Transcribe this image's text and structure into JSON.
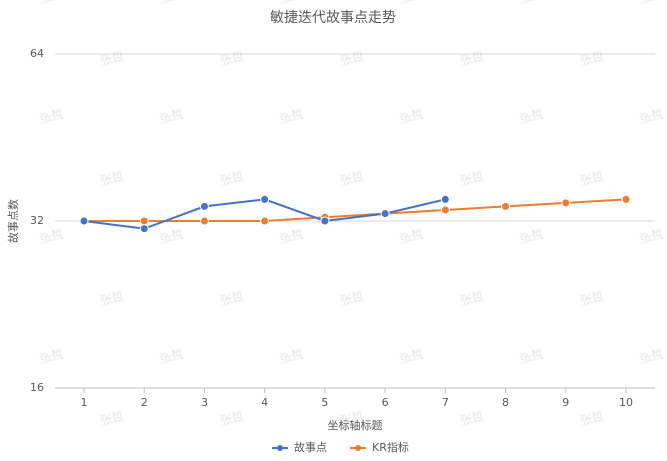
{
  "chart_data": {
    "type": "line",
    "title": "敏捷迭代故事点走势",
    "xlabel": "坐标轴标题",
    "ylabel": "故事点数",
    "categories": [
      "1",
      "2",
      "3",
      "4",
      "5",
      "6",
      "7",
      "8",
      "9",
      "10"
    ],
    "series": [
      {
        "name": "故事点",
        "color": "#4472c4",
        "values": [
          32,
          31,
          34,
          35,
          32,
          33,
          35,
          null,
          null,
          null
        ]
      },
      {
        "name": "KR指标",
        "color": "#ed7d31",
        "values": [
          32,
          32,
          32,
          32,
          32.5,
          33,
          33.5,
          34,
          34.5,
          35
        ]
      }
    ],
    "ylim": [
      16,
      64
    ],
    "yticks": [
      16,
      32,
      64
    ],
    "log_scale": true,
    "grid": true,
    "legend": "bottom",
    "watermark": "张哲"
  }
}
